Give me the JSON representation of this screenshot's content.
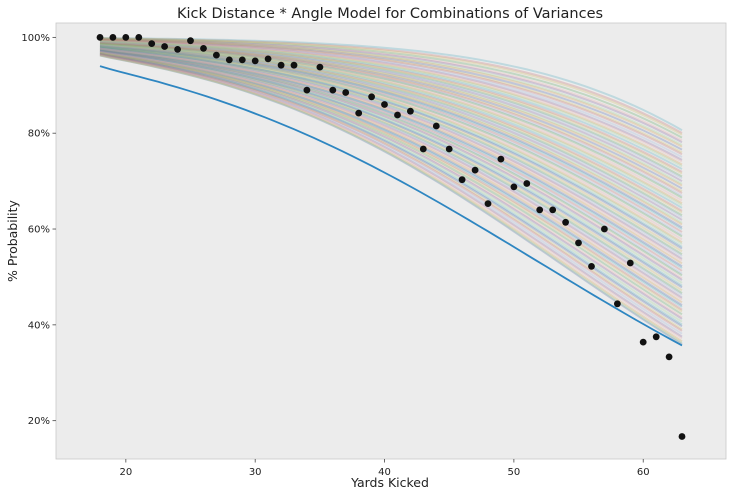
{
  "chart_data": {
    "type": "scatter",
    "title": "Kick Distance * Angle Model for Combinations of Variances",
    "xlabel": "Yards Kicked",
    "ylabel": "% Probability",
    "xlim": [
      14.6,
      66.4
    ],
    "ylim": [
      0.12,
      1.03
    ],
    "x_ticks": [
      20,
      30,
      40,
      50,
      60
    ],
    "x_tick_labels": [
      "20",
      "30",
      "40",
      "50",
      "60"
    ],
    "y_ticks": [
      0.2,
      0.4,
      0.6,
      0.8,
      1.0
    ],
    "y_tick_labels": [
      "20%",
      "40%",
      "60%",
      "80%",
      "100%"
    ],
    "grid": false,
    "legend": "none",
    "colors": {
      "background": "#ececec",
      "points": "#111111",
      "highlight_curve": "#2e86c1",
      "band_palette": [
        "#4a66a8",
        "#c26a70",
        "#56a35a",
        "#8064a0",
        "#d49a4c",
        "#4aa8c0",
        "#d0b660",
        "#9ab0d8",
        "#e6a9a9",
        "#9ccf92"
      ]
    },
    "observed_points": {
      "x": [
        18,
        19,
        20,
        21,
        22,
        23,
        24,
        25,
        26,
        27,
        28,
        29,
        30,
        31,
        32,
        33,
        34,
        35,
        36,
        37,
        38,
        39,
        40,
        41,
        42,
        43,
        44,
        45,
        46,
        47,
        48,
        49,
        50,
        51,
        52,
        53,
        54,
        55,
        56,
        57,
        58,
        59,
        60,
        61,
        62,
        63
      ],
      "y": [
        1.0,
        1.0,
        1.0,
        1.0,
        0.987,
        0.981,
        0.975,
        0.993,
        0.977,
        0.963,
        0.953,
        0.953,
        0.951,
        0.955,
        0.942,
        0.942,
        0.89,
        0.938,
        0.89,
        0.885,
        0.842,
        0.876,
        0.86,
        0.838,
        0.846,
        0.767,
        0.815,
        0.767,
        0.703,
        0.723,
        0.653,
        0.746,
        0.688,
        0.695,
        0.64,
        0.64,
        0.614,
        0.571,
        0.522,
        0.6,
        0.444,
        0.529,
        0.364,
        0.375,
        0.333,
        0.167
      ]
    },
    "model_curves": {
      "x_range": [
        18,
        63
      ],
      "start_range": [
        0.95,
        0.999
      ],
      "end_range": [
        0.36,
        0.81
      ],
      "count": 90,
      "highlight_curve": {
        "start": 0.94,
        "end": 0.357
      }
    }
  }
}
